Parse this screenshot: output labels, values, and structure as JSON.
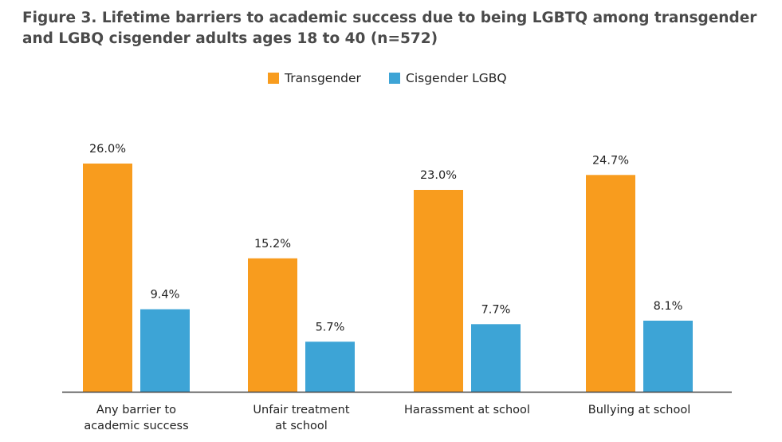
{
  "title": "Figure 3. Lifetime barriers to academic success due to being LGBTQ among transgender and LGBQ cisgender adults ages 18 to 40 (n=572)",
  "colors": {
    "transgender": "#F89C1E",
    "cisgender": "#3DA4D6",
    "axis": "#444444",
    "text": "#222222"
  },
  "chart_data": {
    "type": "bar",
    "title": "Figure 3. Lifetime barriers to academic success due to being LGBTQ among transgender and LGBQ cisgender adults ages 18 to 40 (n=572)",
    "categories": [
      [
        "Any barrier to",
        "academic success"
      ],
      [
        "Unfair treatment",
        "at school"
      ],
      [
        "Harassment at school"
      ],
      [
        "Bullying at school"
      ]
    ],
    "series": [
      {
        "name": "Transgender",
        "values": [
          26.0,
          15.2,
          23.0,
          24.7
        ],
        "labels": [
          "26.0%",
          "15.2%",
          "23.0%",
          "24.7%"
        ]
      },
      {
        "name": "Cisgender LGBQ",
        "values": [
          9.4,
          5.7,
          7.7,
          8.1
        ],
        "labels": [
          "9.4%",
          "5.7%",
          "7.7%",
          "8.1%"
        ]
      }
    ],
    "xlabel": "",
    "ylabel": "",
    "ylim": [
      0,
      30
    ],
    "grid": false,
    "legend_position": "top-center"
  }
}
